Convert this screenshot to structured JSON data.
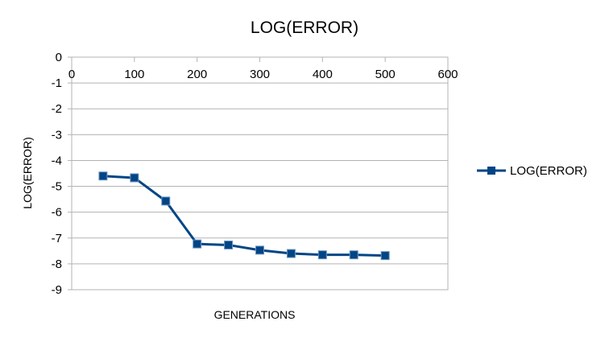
{
  "chart_data": {
    "type": "line",
    "title": "LOG(ERROR)",
    "xlabel": "GENERATIONS",
    "ylabel": "LOG(ERROR)",
    "xlim": [
      0,
      600
    ],
    "ylim": [
      -9,
      0
    ],
    "x_ticks": [
      "0",
      "100",
      "200",
      "300",
      "400",
      "500",
      "600"
    ],
    "y_ticks": [
      "0",
      "-1",
      "-2",
      "-3",
      "-4",
      "-5",
      "-6",
      "-7",
      "-8",
      "-9"
    ],
    "grid": true,
    "legend_position": "right",
    "series": [
      {
        "name": "LOG(ERROR)",
        "color": "#004586",
        "marker": "square",
        "x": [
          50,
          100,
          150,
          200,
          250,
          300,
          350,
          400,
          450,
          500
        ],
        "y": [
          -4.6,
          -4.67,
          -5.57,
          -7.23,
          -7.27,
          -7.47,
          -7.6,
          -7.65,
          -7.65,
          -7.68
        ]
      }
    ]
  }
}
